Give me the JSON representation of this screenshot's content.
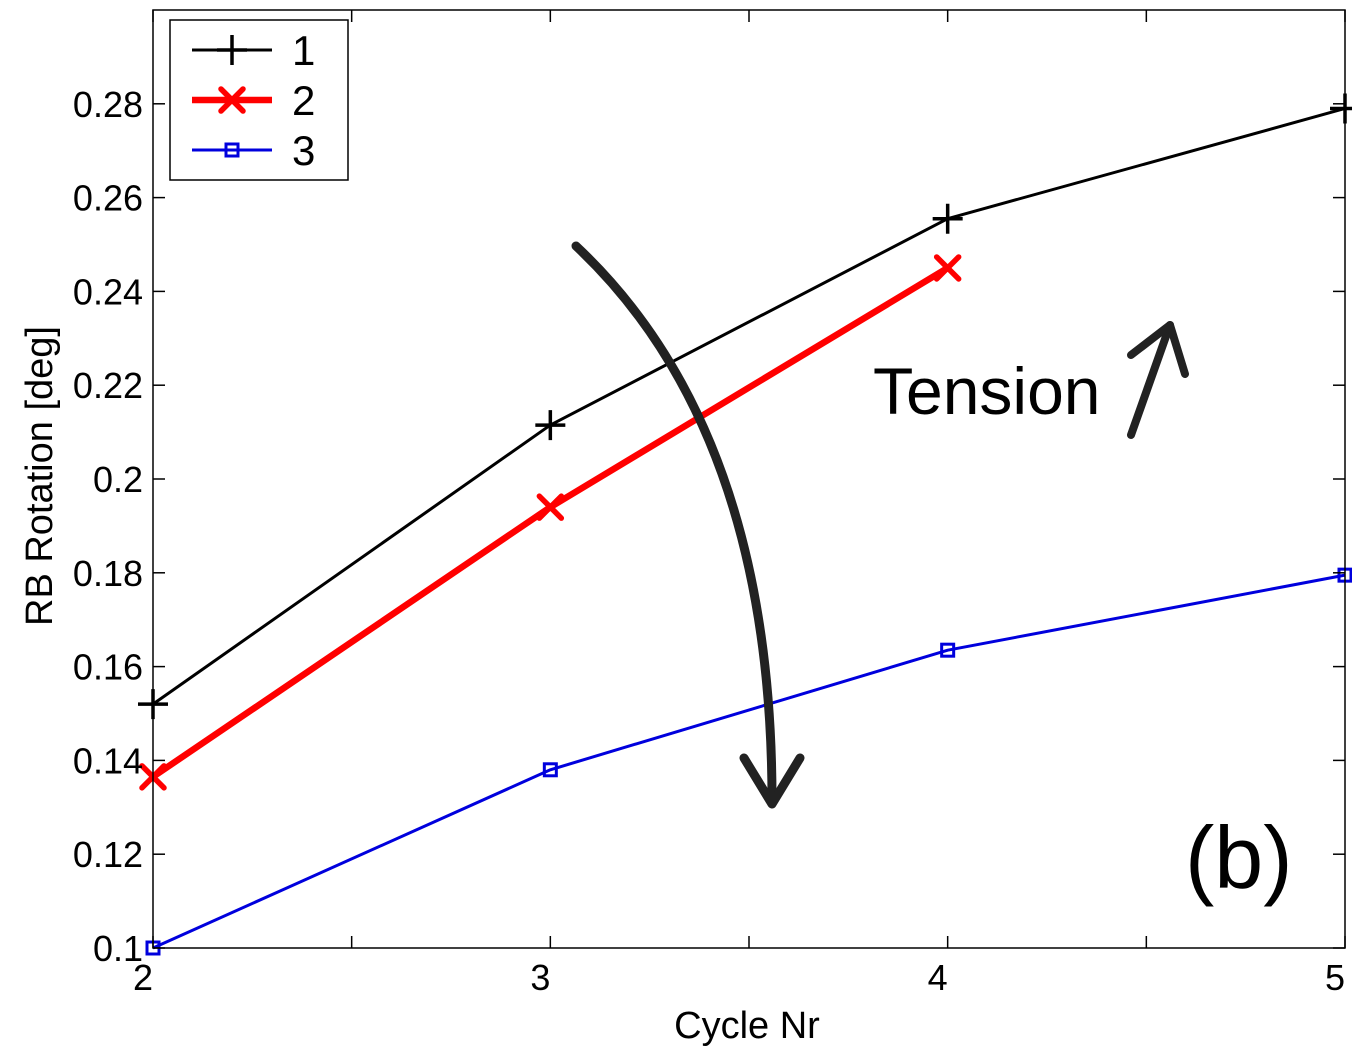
{
  "chart_data": {
    "type": "line",
    "title": "",
    "xlabel": "Cycle Nr",
    "ylabel": "RB Rotation [deg]",
    "xlim": [
      2,
      5
    ],
    "ylim": [
      0.1,
      0.3
    ],
    "xticks": [
      2,
      2.5,
      3,
      3.5,
      4,
      4.5,
      5
    ],
    "xtick_labels": [
      "2",
      "",
      "3",
      "",
      "4",
      "",
      "5"
    ],
    "yticks": [
      0.1,
      0.12,
      0.14,
      0.16,
      0.18,
      0.2,
      0.22,
      0.24,
      0.26,
      0.28
    ],
    "ytick_labels": [
      "0.1",
      "0.12",
      "0.14",
      "0.16",
      "0.18",
      "0.2",
      "0.22",
      "0.24",
      "0.26",
      "0.28"
    ],
    "grid": false,
    "legend_position": "top-left",
    "series": [
      {
        "name": "1",
        "color": "#000000",
        "marker": "plus",
        "x": [
          2,
          3,
          4,
          5
        ],
        "y": [
          0.152,
          0.2115,
          0.2555,
          0.279
        ]
      },
      {
        "name": "2",
        "color": "#ff0000",
        "marker": "x",
        "x": [
          2,
          3,
          4
        ],
        "y": [
          0.1365,
          0.194,
          0.245
        ]
      },
      {
        "name": "3",
        "color": "#0000dd",
        "marker": "square",
        "x": [
          2,
          3,
          4,
          5
        ],
        "y": [
          0.1,
          0.138,
          0.1635,
          0.1795
        ]
      }
    ],
    "annotations": {
      "tension_label": "Tension",
      "panel_label": "(b)"
    }
  }
}
